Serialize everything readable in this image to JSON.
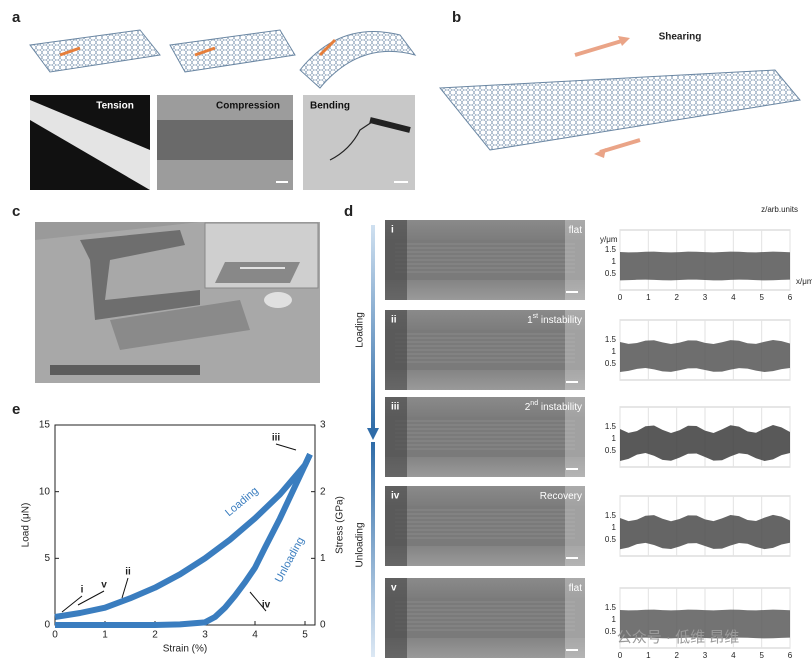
{
  "panels": {
    "a": {
      "label": "a",
      "micrographs": [
        "Tension",
        "Compression",
        "Bending"
      ]
    },
    "b": {
      "label": "b",
      "text": "Shearing"
    },
    "c": {
      "label": "c"
    },
    "d": {
      "label": "d",
      "z_label": "z/arb.units",
      "phases": [
        "Loading",
        "Unloading"
      ],
      "rows": [
        {
          "numeral": "i",
          "state": "flat"
        },
        {
          "numeral": "ii",
          "state": "1",
          "sup": "st",
          "rest": " instability"
        },
        {
          "numeral": "iii",
          "state": "2",
          "sup": "nd",
          "rest": " instability"
        },
        {
          "numeral": "iv",
          "state": "Recovery"
        },
        {
          "numeral": "v",
          "state": "flat"
        }
      ],
      "profile": {
        "y_label": "y/μm",
        "x_label": "x/μm",
        "yticks": [
          1.5,
          1,
          0.5
        ],
        "xticks": [
          0,
          1,
          2,
          3,
          4,
          5,
          6
        ]
      }
    },
    "e": {
      "label": "e"
    }
  },
  "chart_data": {
    "type": "line",
    "x_label": "Strain (%)",
    "y_label": "Load (μN)",
    "y2_label": "Stress (GPa)",
    "xlim": [
      0,
      5.2
    ],
    "xticks": [
      0,
      1,
      2,
      3,
      4,
      5
    ],
    "ylim": [
      0,
      15
    ],
    "yticks": [
      0,
      5,
      10,
      15
    ],
    "y2lim": [
      0,
      3
    ],
    "y2ticks": [
      0,
      1,
      2,
      3
    ],
    "annotations": [
      "i",
      "ii",
      "iii",
      "iv",
      "v"
    ],
    "series": [
      {
        "name": "Loading",
        "color": "#3a7dbf",
        "x": [
          0,
          0.5,
          1,
          1.5,
          2,
          2.5,
          3,
          3.5,
          4,
          4.5,
          5,
          5.1
        ],
        "values": [
          0.6,
          0.9,
          1.3,
          2,
          2.8,
          3.8,
          5,
          6.4,
          8,
          9.8,
          12,
          12.8
        ]
      },
      {
        "name": "Unloading",
        "color": "#3a7dbf",
        "x": [
          5.1,
          4.9,
          4.7,
          4.5,
          4.2,
          4,
          3.8,
          3.6,
          3.4,
          3.2,
          3,
          2.5,
          2,
          1,
          0
        ],
        "values": [
          12.8,
          11.2,
          9.6,
          8,
          5.8,
          4.3,
          3.2,
          2.2,
          1.3,
          0.6,
          0.2,
          0.05,
          0,
          0,
          0
        ]
      }
    ]
  },
  "watermark": "公众号 · 低维 昂维"
}
